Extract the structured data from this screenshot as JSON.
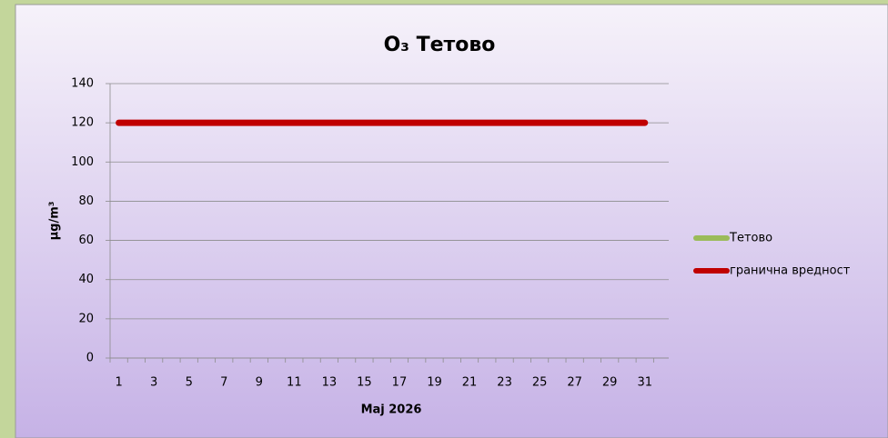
{
  "chart_data": {
    "type": "line",
    "title": "O₃ Тетово",
    "x_label": "Maj 2026",
    "y_label": "µg/m³",
    "categories": [
      "1",
      null,
      "3",
      null,
      "5",
      null,
      "7",
      null,
      "9",
      null,
      "11",
      null,
      "13",
      null,
      "15",
      null,
      "17",
      null,
      "19",
      null,
      "21",
      null,
      "23",
      null,
      "25",
      null,
      "27",
      null,
      "29",
      null,
      "31"
    ],
    "series": [
      {
        "name": "Тетово",
        "color": "#9bbb59",
        "values": [
          null,
          null,
          null,
          null,
          null,
          null,
          null,
          null,
          null,
          null,
          null,
          null,
          null,
          null,
          null,
          null,
          null,
          null,
          null,
          null,
          null,
          null,
          null,
          null,
          null,
          null,
          null,
          null,
          null,
          null,
          null
        ]
      },
      {
        "name": "гранична вредност",
        "color": "#c00000",
        "values": [
          120,
          120,
          120,
          120,
          120,
          120,
          120,
          120,
          120,
          120,
          120,
          120,
          120,
          120,
          120,
          120,
          120,
          120,
          120,
          120,
          120,
          120,
          120,
          120,
          120,
          120,
          120,
          120,
          120,
          120,
          120
        ]
      }
    ],
    "ylim": [
      0,
      140
    ],
    "yticks": [
      0,
      20,
      40,
      60,
      80,
      100,
      120,
      140
    ],
    "grid": true,
    "legend": "right"
  }
}
